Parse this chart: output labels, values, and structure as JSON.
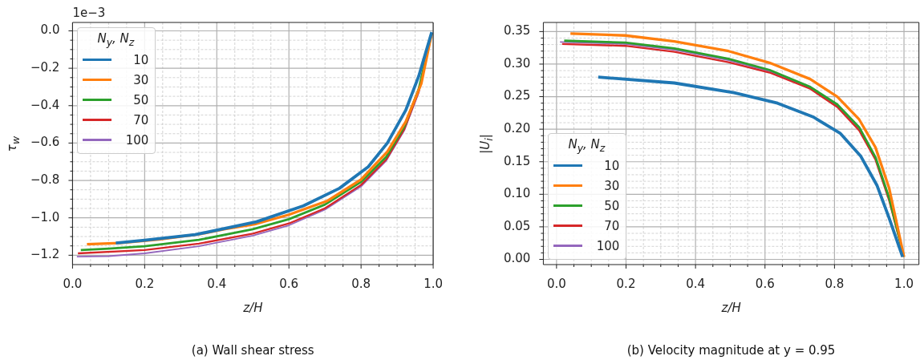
{
  "chart_data": [
    {
      "type": "line",
      "title": "(a) Wall shear stress",
      "xlabel": "z/H",
      "ylabel": "τ$_{w}$",
      "legend_title": "N$_{y}$, N$_{z}$",
      "annotations": [
        "1e−3"
      ],
      "legend": "top left",
      "grid": true,
      "xlim": [
        0,
        1
      ],
      "ylim": [
        -1.25,
        0.045
      ],
      "xticks": [
        {
          "value": 0,
          "label": "0.0"
        },
        {
          "value": 0.05,
          "label": null
        },
        {
          "value": 0.1,
          "label": null
        },
        {
          "value": 0.15,
          "label": null
        },
        {
          "value": 0.2,
          "label": "0.2"
        },
        {
          "value": 0.25,
          "label": null
        },
        {
          "value": 0.3,
          "label": null
        },
        {
          "value": 0.35,
          "label": null
        },
        {
          "value": 0.4,
          "label": "0.4"
        },
        {
          "value": 0.45,
          "label": null
        },
        {
          "value": 0.5,
          "label": null
        },
        {
          "value": 0.55,
          "label": null
        },
        {
          "value": 0.6,
          "label": "0.6"
        },
        {
          "value": 0.65,
          "label": null
        },
        {
          "value": 0.7,
          "label": null
        },
        {
          "value": 0.75,
          "label": null
        },
        {
          "value": 0.8,
          "label": "0.8"
        },
        {
          "value": 0.85,
          "label": null
        },
        {
          "value": 0.9,
          "label": null
        },
        {
          "value": 0.95,
          "label": null
        },
        {
          "value": 1,
          "label": "1.0"
        }
      ],
      "yticks": [
        {
          "value": -1.2,
          "label": "−1.2"
        },
        {
          "value": -1.15,
          "label": null
        },
        {
          "value": -1.1,
          "label": null
        },
        {
          "value": -1.05,
          "label": null
        },
        {
          "value": -1.0,
          "label": "−1.0"
        },
        {
          "value": -0.95,
          "label": null
        },
        {
          "value": -0.9,
          "label": null
        },
        {
          "value": -0.85,
          "label": null
        },
        {
          "value": -0.8,
          "label": "−0.8"
        },
        {
          "value": -0.75,
          "label": null
        },
        {
          "value": -0.7,
          "label": null
        },
        {
          "value": -0.65,
          "label": null
        },
        {
          "value": -0.6,
          "label": "−0.6"
        },
        {
          "value": -0.55,
          "label": null
        },
        {
          "value": -0.5,
          "label": null
        },
        {
          "value": -0.45,
          "label": null
        },
        {
          "value": -0.4,
          "label": "−0.4"
        },
        {
          "value": -0.35,
          "label": null
        },
        {
          "value": -0.3,
          "label": null
        },
        {
          "value": -0.25,
          "label": null
        },
        {
          "value": -0.2,
          "label": "−0.2"
        },
        {
          "value": -0.15,
          "label": null
        },
        {
          "value": -0.1,
          "label": null
        },
        {
          "value": -0.05,
          "label": null
        },
        {
          "value": 0,
          "label": "0.0"
        }
      ],
      "series": [
        {
          "name": "10",
          "color": "#1f77b4",
          "x": [
            0.12,
            0.2,
            0.34,
            0.51,
            0.64,
            0.74,
            0.82,
            0.873,
            0.924,
            0.96,
            0.996
          ],
          "values": [
            -1.135,
            -1.12,
            -1.09,
            -1.021,
            -0.936,
            -0.842,
            -0.727,
            -0.6,
            -0.424,
            -0.242,
            -0.007
          ]
        },
        {
          "name": "30",
          "color": "#ff7f0e",
          "x": [
            0.04,
            0.13,
            0.24,
            0.35,
            0.42,
            0.505,
            0.6,
            0.707,
            0.8,
            0.873,
            0.924,
            0.967,
            0.996
          ],
          "values": [
            -1.141,
            -1.135,
            -1.115,
            -1.088,
            -1.061,
            -1.034,
            -0.983,
            -0.909,
            -0.795,
            -0.646,
            -0.485,
            -0.283,
            -0.013
          ]
        },
        {
          "name": "50",
          "color": "#2ca02c",
          "x": [
            0.023,
            0.1,
            0.2,
            0.35,
            0.5,
            0.6,
            0.7,
            0.8,
            0.87,
            0.92,
            0.96,
            0.996
          ],
          "values": [
            -1.172,
            -1.165,
            -1.152,
            -1.118,
            -1.061,
            -1.007,
            -0.929,
            -0.808,
            -0.673,
            -0.512,
            -0.31,
            -0.013
          ]
        },
        {
          "name": "70",
          "color": "#d62728",
          "x": [
            0.015,
            0.2,
            0.35,
            0.5,
            0.6,
            0.7,
            0.8,
            0.87,
            0.92,
            0.96,
            0.996
          ],
          "values": [
            -1.19,
            -1.172,
            -1.138,
            -1.084,
            -1.03,
            -0.949,
            -0.824,
            -0.687,
            -0.525,
            -0.323,
            -0.013
          ]
        },
        {
          "name": "100",
          "color": "#9467bd",
          "x": [
            0.012,
            0.1,
            0.2,
            0.35,
            0.5,
            0.6,
            0.7,
            0.8,
            0.87,
            0.92,
            0.96,
            0.996
          ],
          "values": [
            -1.208,
            -1.205,
            -1.19,
            -1.152,
            -1.095,
            -1.04,
            -0.956,
            -0.832,
            -0.694,
            -0.532,
            -0.33,
            -0.013
          ]
        }
      ]
    },
    {
      "type": "line",
      "title": "(b) Velocity magnitude at y = 0.95",
      "xlabel": "z/H",
      "ylabel": "|U$_{i}$|",
      "legend_title": "N$_{y}$, N$_{z}$",
      "legend": "bottom left",
      "grid": true,
      "xlim": [
        -0.038,
        1.043
      ],
      "ylim": [
        -0.008,
        0.364
      ],
      "xticks": [
        {
          "value": 0,
          "label": "0.0"
        },
        {
          "value": 0.05,
          "label": null
        },
        {
          "value": 0.1,
          "label": null
        },
        {
          "value": 0.15,
          "label": null
        },
        {
          "value": 0.2,
          "label": "0.2"
        },
        {
          "value": 0.25,
          "label": null
        },
        {
          "value": 0.3,
          "label": null
        },
        {
          "value": 0.35,
          "label": null
        },
        {
          "value": 0.4,
          "label": "0.4"
        },
        {
          "value": 0.45,
          "label": null
        },
        {
          "value": 0.5,
          "label": null
        },
        {
          "value": 0.55,
          "label": null
        },
        {
          "value": 0.6,
          "label": "0.6"
        },
        {
          "value": 0.65,
          "label": null
        },
        {
          "value": 0.7,
          "label": null
        },
        {
          "value": 0.75,
          "label": null
        },
        {
          "value": 0.8,
          "label": "0.8"
        },
        {
          "value": 0.85,
          "label": null
        },
        {
          "value": 0.9,
          "label": null
        },
        {
          "value": 0.95,
          "label": null
        },
        {
          "value": 1,
          "label": "1.0"
        }
      ],
      "yticks": [
        {
          "value": 0,
          "label": "0.00"
        },
        {
          "value": 0.01,
          "label": null
        },
        {
          "value": 0.02,
          "label": null
        },
        {
          "value": 0.03,
          "label": null
        },
        {
          "value": 0.04,
          "label": null
        },
        {
          "value": 0.05,
          "label": "0.05"
        },
        {
          "value": 0.06,
          "label": null
        },
        {
          "value": 0.07,
          "label": null
        },
        {
          "value": 0.08,
          "label": null
        },
        {
          "value": 0.09,
          "label": null
        },
        {
          "value": 0.1,
          "label": "0.10"
        },
        {
          "value": 0.11,
          "label": null
        },
        {
          "value": 0.12,
          "label": null
        },
        {
          "value": 0.13,
          "label": null
        },
        {
          "value": 0.14,
          "label": null
        },
        {
          "value": 0.15,
          "label": "0.15"
        },
        {
          "value": 0.16,
          "label": null
        },
        {
          "value": 0.17,
          "label": null
        },
        {
          "value": 0.18,
          "label": null
        },
        {
          "value": 0.19,
          "label": null
        },
        {
          "value": 0.2,
          "label": "0.20"
        },
        {
          "value": 0.21,
          "label": null
        },
        {
          "value": 0.22,
          "label": null
        },
        {
          "value": 0.23,
          "label": null
        },
        {
          "value": 0.24,
          "label": null
        },
        {
          "value": 0.25,
          "label": "0.25"
        },
        {
          "value": 0.26,
          "label": null
        },
        {
          "value": 0.27,
          "label": null
        },
        {
          "value": 0.28,
          "label": null
        },
        {
          "value": 0.29,
          "label": null
        },
        {
          "value": 0.3,
          "label": "0.30"
        },
        {
          "value": 0.31,
          "label": null
        },
        {
          "value": 0.32,
          "label": null
        },
        {
          "value": 0.33,
          "label": null
        },
        {
          "value": 0.34,
          "label": null
        },
        {
          "value": 0.35,
          "label": "0.35"
        }
      ],
      "series": [
        {
          "name": "10",
          "color": "#1f77b4",
          "x": [
            0.12,
            0.339,
            0.511,
            0.636,
            0.738,
            0.816,
            0.875,
            0.922,
            0.957,
            0.996
          ],
          "values": [
            0.28,
            0.271,
            0.256,
            0.24,
            0.219,
            0.194,
            0.159,
            0.114,
            0.064,
            0.004
          ]
        },
        {
          "name": "30",
          "color": "#ff7f0e",
          "x": [
            0.04,
            0.198,
            0.339,
            0.495,
            0.613,
            0.73,
            0.808,
            0.871,
            0.918,
            0.957,
            1.0
          ],
          "values": [
            0.347,
            0.344,
            0.335,
            0.32,
            0.302,
            0.277,
            0.25,
            0.215,
            0.172,
            0.11,
            0.004
          ]
        },
        {
          "name": "50",
          "color": "#2ca02c",
          "x": [
            0.022,
            0.198,
            0.339,
            0.495,
            0.613,
            0.73,
            0.808,
            0.871,
            0.918,
            0.957,
            1.0
          ],
          "values": [
            0.336,
            0.333,
            0.324,
            0.308,
            0.291,
            0.265,
            0.238,
            0.203,
            0.157,
            0.095,
            0.004
          ]
        },
        {
          "name": "70",
          "color": "#d62728",
          "x": [
            0.016,
            0.198,
            0.339,
            0.495,
            0.613,
            0.73,
            0.808,
            0.871,
            0.918,
            0.957,
            1.0
          ],
          "values": [
            0.331,
            0.328,
            0.319,
            0.303,
            0.287,
            0.262,
            0.234,
            0.198,
            0.153,
            0.091,
            0.004
          ]
        },
        {
          "name": "100",
          "color": "#9467bd",
          "x": [
            0.01,
            0.198,
            0.339,
            0.495,
            0.613,
            0.73,
            0.808,
            0.871,
            0.918,
            0.957,
            1.0
          ],
          "values": [
            0.334,
            0.331,
            0.322,
            0.306,
            0.289,
            0.263,
            0.236,
            0.2,
            0.155,
            0.093,
            0.004
          ]
        }
      ]
    }
  ]
}
